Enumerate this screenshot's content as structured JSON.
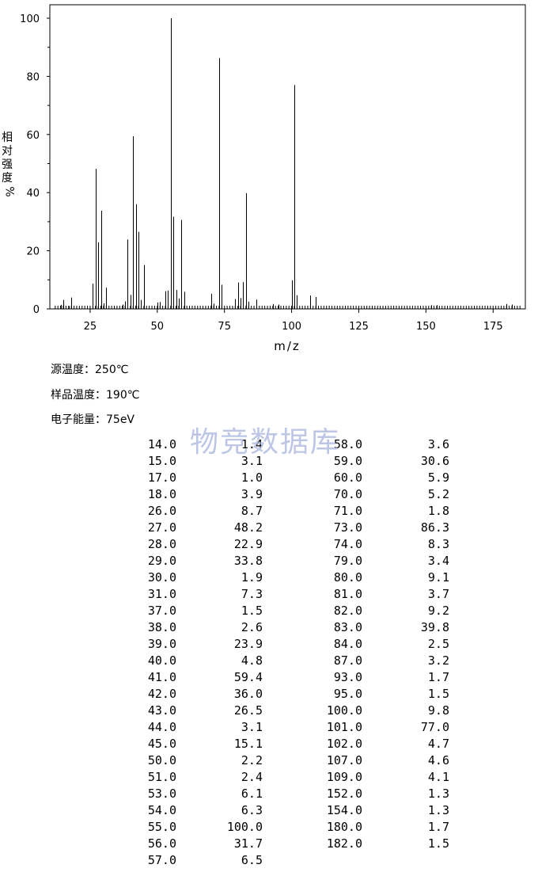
{
  "chart_data": {
    "type": "bar",
    "xlabel": "m/z",
    "ylabel": "相对强度%",
    "xlim": [
      10,
      187
    ],
    "ylim": [
      0,
      100
    ],
    "xticks": [
      25,
      50,
      75,
      100,
      125,
      150,
      175
    ],
    "yticks": [
      0,
      20,
      40,
      60,
      80,
      100
    ],
    "grid": false,
    "x": [
      14,
      15,
      17,
      18,
      26,
      27,
      28,
      29,
      30,
      31,
      37,
      38,
      39,
      40,
      41,
      42,
      43,
      44,
      45,
      50,
      51,
      53,
      54,
      55,
      56,
      57,
      58,
      59,
      60,
      70,
      71,
      73,
      74,
      79,
      80,
      81,
      82,
      83,
      84,
      87,
      93,
      95,
      100,
      101,
      102,
      107,
      109,
      152,
      154,
      180,
      182
    ],
    "values": [
      1.4,
      3.1,
      1.0,
      3.9,
      8.7,
      48.2,
      22.9,
      33.8,
      1.9,
      7.3,
      1.5,
      2.6,
      23.9,
      4.8,
      59.4,
      36.0,
      26.5,
      3.1,
      15.1,
      2.2,
      2.4,
      6.1,
      6.3,
      100.0,
      31.7,
      6.5,
      3.6,
      30.6,
      5.9,
      5.2,
      1.8,
      86.3,
      8.3,
      3.4,
      9.1,
      3.7,
      9.2,
      39.8,
      2.5,
      3.2,
      1.7,
      1.5,
      9.8,
      77.0,
      4.7,
      4.6,
      4.1,
      1.3,
      1.3,
      1.7,
      1.5
    ]
  },
  "info": {
    "source_temp": "源温度：250℃",
    "sample_temp": "样品温度：190℃",
    "electron_energy": "电子能量：75eV"
  },
  "watermark": "物竞数据库",
  "table": {
    "left": [
      [
        "14.0",
        "1.4"
      ],
      [
        "15.0",
        "3.1"
      ],
      [
        "17.0",
        "1.0"
      ],
      [
        "18.0",
        "3.9"
      ],
      [
        "26.0",
        "8.7"
      ],
      [
        "27.0",
        "48.2"
      ],
      [
        "28.0",
        "22.9"
      ],
      [
        "29.0",
        "33.8"
      ],
      [
        "30.0",
        "1.9"
      ],
      [
        "31.0",
        "7.3"
      ],
      [
        "37.0",
        "1.5"
      ],
      [
        "38.0",
        "2.6"
      ],
      [
        "39.0",
        "23.9"
      ],
      [
        "40.0",
        "4.8"
      ],
      [
        "41.0",
        "59.4"
      ],
      [
        "42.0",
        "36.0"
      ],
      [
        "43.0",
        "26.5"
      ],
      [
        "44.0",
        "3.1"
      ],
      [
        "45.0",
        "15.1"
      ],
      [
        "50.0",
        "2.2"
      ],
      [
        "51.0",
        "2.4"
      ],
      [
        "53.0",
        "6.1"
      ],
      [
        "54.0",
        "6.3"
      ],
      [
        "55.0",
        "100.0"
      ],
      [
        "56.0",
        "31.7"
      ],
      [
        "57.0",
        "6.5"
      ]
    ],
    "right": [
      [
        "58.0",
        "3.6"
      ],
      [
        "59.0",
        "30.6"
      ],
      [
        "60.0",
        "5.9"
      ],
      [
        "70.0",
        "5.2"
      ],
      [
        "71.0",
        "1.8"
      ],
      [
        "73.0",
        "86.3"
      ],
      [
        "74.0",
        "8.3"
      ],
      [
        "79.0",
        "3.4"
      ],
      [
        "80.0",
        "9.1"
      ],
      [
        "81.0",
        "3.7"
      ],
      [
        "82.0",
        "9.2"
      ],
      [
        "83.0",
        "39.8"
      ],
      [
        "84.0",
        "2.5"
      ],
      [
        "87.0",
        "3.2"
      ],
      [
        "93.0",
        "1.7"
      ],
      [
        "95.0",
        "1.5"
      ],
      [
        "100.0",
        "9.8"
      ],
      [
        "101.0",
        "77.0"
      ],
      [
        "102.0",
        "4.7"
      ],
      [
        "107.0",
        "4.6"
      ],
      [
        "109.0",
        "4.1"
      ],
      [
        "152.0",
        "1.3"
      ],
      [
        "154.0",
        "1.3"
      ],
      [
        "180.0",
        "1.7"
      ],
      [
        "182.0",
        "1.5"
      ]
    ]
  }
}
